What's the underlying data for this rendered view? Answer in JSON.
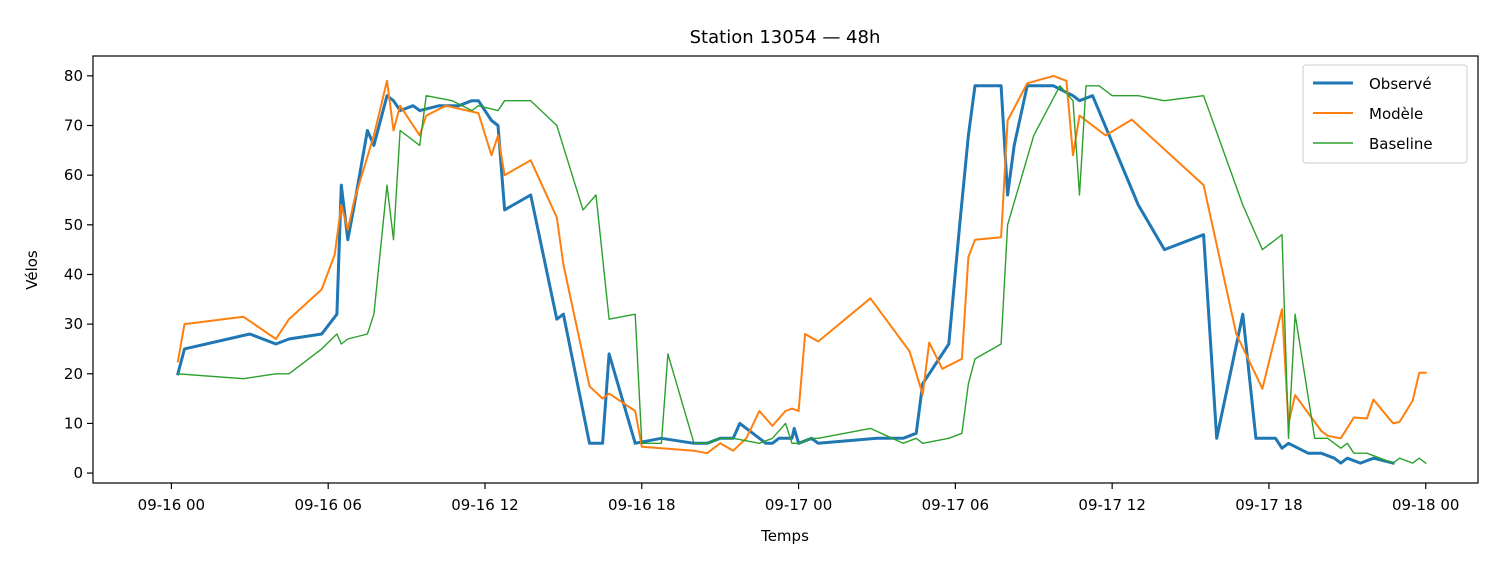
{
  "chart_data": {
    "type": "line",
    "title": "Station 13054 — 48h",
    "xlabel": "Temps",
    "ylabel": "Vélos",
    "x_unit": "date-hour",
    "xlim": [
      "09-15 21:00",
      "09-18 02:00"
    ],
    "ylim": [
      -2,
      84
    ],
    "x_ticks": [
      "09-16 00",
      "09-16 06",
      "09-16 12",
      "09-16 18",
      "09-17 00",
      "09-17 06",
      "09-17 12",
      "09-17 18",
      "09-18 00"
    ],
    "y_ticks": [
      0,
      10,
      20,
      30,
      40,
      50,
      60,
      70,
      80
    ],
    "grid": false,
    "legend_position": "top-right",
    "colors": {
      "observe": "#1f77b4",
      "modele": "#ff7f0e",
      "baseline": "#2ca02c"
    },
    "series": [
      {
        "name": "Observé",
        "points": [
          [
            "09-16 00:15",
            20
          ],
          [
            "09-16 00:30",
            25
          ],
          [
            "09-16 03:00",
            28
          ],
          [
            "09-16 04:00",
            26
          ],
          [
            "09-16 04:30",
            27
          ],
          [
            "09-16 05:45",
            28
          ],
          [
            "09-16 06:20",
            32
          ],
          [
            "09-16 06:30",
            58
          ],
          [
            "09-16 06:45",
            47
          ],
          [
            "09-16 07:00",
            54
          ],
          [
            "09-16 07:30",
            69
          ],
          [
            "09-16 07:45",
            66
          ],
          [
            "09-16 08:15",
            76
          ],
          [
            "09-16 08:30",
            75
          ],
          [
            "09-16 08:45",
            73
          ],
          [
            "09-16 09:15",
            74
          ],
          [
            "09-16 09:30",
            73
          ],
          [
            "09-16 10:15",
            74
          ],
          [
            "09-16 11:00",
            74
          ],
          [
            "09-16 11:30",
            75
          ],
          [
            "09-16 11:45",
            75
          ],
          [
            "09-16 12:15",
            71
          ],
          [
            "09-16 12:30",
            70
          ],
          [
            "09-16 12:45",
            53
          ],
          [
            "09-16 13:45",
            56
          ],
          [
            "09-16 14:45",
            31
          ],
          [
            "09-16 15:00",
            32
          ],
          [
            "09-16 16:00",
            6
          ],
          [
            "09-16 16:30",
            6
          ],
          [
            "09-16 16:45",
            24
          ],
          [
            "09-16 17:45",
            6
          ],
          [
            "09-16 18:15",
            6.5
          ],
          [
            "09-16 18:45",
            7
          ],
          [
            "09-16 20:00",
            6
          ],
          [
            "09-16 20:30",
            6
          ],
          [
            "09-16 21:00",
            7
          ],
          [
            "09-16 21:30",
            7
          ],
          [
            "09-16 21:45",
            10
          ],
          [
            "09-16 22:30",
            7
          ],
          [
            "09-16 22:45",
            6
          ],
          [
            "09-16 23:00",
            6
          ],
          [
            "09-16 23:15",
            7
          ],
          [
            "09-16 23:30",
            7
          ],
          [
            "09-16 23:45",
            7
          ],
          [
            "09-16 23:50",
            9
          ],
          [
            "09-17 00:00",
            6
          ],
          [
            "09-17 00:30",
            7
          ],
          [
            "09-17 00:45",
            6
          ],
          [
            "09-17 03:00",
            7
          ],
          [
            "09-17 04:00",
            7
          ],
          [
            "09-17 04:30",
            8
          ],
          [
            "09-17 04:45",
            18
          ],
          [
            "09-17 05:45",
            26
          ],
          [
            "09-17 06:10",
            50
          ],
          [
            "09-17 06:30",
            68
          ],
          [
            "09-17 06:45",
            78
          ],
          [
            "09-17 07:45",
            78
          ],
          [
            "09-17 08:00",
            56
          ],
          [
            "09-17 08:15",
            66
          ],
          [
            "09-17 08:45",
            78
          ],
          [
            "09-17 09:45",
            78
          ],
          [
            "09-17 10:30",
            76
          ],
          [
            "09-17 10:45",
            75
          ],
          [
            "09-17 11:15",
            76
          ],
          [
            "09-17 13:00",
            54
          ],
          [
            "09-17 14:00",
            45
          ],
          [
            "09-17 15:30",
            48
          ],
          [
            "09-17 16:00",
            7
          ],
          [
            "09-17 17:00",
            32
          ],
          [
            "09-17 17:30",
            7
          ],
          [
            "09-17 18:15",
            7
          ],
          [
            "09-17 18:30",
            5
          ],
          [
            "09-17 18:45",
            6
          ],
          [
            "09-17 19:30",
            4
          ],
          [
            "09-17 20:00",
            4
          ],
          [
            "09-17 20:30",
            3
          ],
          [
            "09-17 20:45",
            2
          ],
          [
            "09-17 21:00",
            3
          ],
          [
            "09-17 21:30",
            2
          ],
          [
            "09-17 22:00",
            3
          ],
          [
            "09-17 22:45",
            2
          ]
        ]
      },
      {
        "name": "Modèle",
        "points": [
          [
            "09-16 00:15",
            22.5
          ],
          [
            "09-16 00:30",
            30
          ],
          [
            "09-16 02:45",
            31.5
          ],
          [
            "09-16 04:00",
            27
          ],
          [
            "09-16 04:30",
            31
          ],
          [
            "09-16 05:45",
            37
          ],
          [
            "09-16 06:15",
            44
          ],
          [
            "09-16 06:30",
            54
          ],
          [
            "09-16 06:45",
            49
          ],
          [
            "09-16 07:00",
            55
          ],
          [
            "09-16 07:45",
            68
          ],
          [
            "09-16 08:15",
            79
          ],
          [
            "09-16 08:30",
            69
          ],
          [
            "09-16 08:45",
            74
          ],
          [
            "09-16 09:00",
            72
          ],
          [
            "09-16 09:30",
            68
          ],
          [
            "09-16 09:45",
            72
          ],
          [
            "09-16 10:30",
            74
          ],
          [
            "09-16 11:45",
            72.5
          ],
          [
            "09-16 12:15",
            64
          ],
          [
            "09-16 12:30",
            68
          ],
          [
            "09-16 12:45",
            60
          ],
          [
            "09-16 13:45",
            63
          ],
          [
            "09-16 14:45",
            51.5
          ],
          [
            "09-16 15:00",
            42
          ],
          [
            "09-16 16:00",
            17.5
          ],
          [
            "09-16 16:30",
            15
          ],
          [
            "09-16 16:45",
            16
          ],
          [
            "09-16 17:45",
            12.5
          ],
          [
            "09-16 18:00",
            5.3
          ],
          [
            "09-16 18:45",
            5.0
          ],
          [
            "09-16 20:00",
            4.5
          ],
          [
            "09-16 20:30",
            4
          ],
          [
            "09-16 21:00",
            6
          ],
          [
            "09-16 21:30",
            4.5
          ],
          [
            "09-16 22:00",
            7
          ],
          [
            "09-16 22:30",
            12.5
          ],
          [
            "09-16 23:00",
            9.5
          ],
          [
            "09-16 23:30",
            12.5
          ],
          [
            "09-16 23:45",
            13
          ],
          [
            "09-17 00:00",
            12.5
          ],
          [
            "09-17 00:15",
            28
          ],
          [
            "09-17 00:45",
            26.5
          ],
          [
            "09-17 02:45",
            35.2
          ],
          [
            "09-17 04:15",
            24.5
          ],
          [
            "09-17 04:45",
            15.8
          ],
          [
            "09-17 05:00",
            26.3
          ],
          [
            "09-17 05:30",
            21
          ],
          [
            "09-17 06:15",
            23
          ],
          [
            "09-17 06:30",
            43.5
          ],
          [
            "09-17 06:45",
            47
          ],
          [
            "09-17 07:45",
            47.5
          ],
          [
            "09-17 08:00",
            71
          ],
          [
            "09-17 08:45",
            78.5
          ],
          [
            "09-17 09:45",
            80
          ],
          [
            "09-17 10:15",
            79
          ],
          [
            "09-17 10:30",
            64
          ],
          [
            "09-17 10:45",
            72
          ],
          [
            "09-17 11:30",
            69
          ],
          [
            "09-17 11:45",
            68
          ],
          [
            "09-17 12:45",
            71.2
          ],
          [
            "09-17 15:30",
            58
          ],
          [
            "09-17 16:45",
            28
          ],
          [
            "09-17 17:45",
            17
          ],
          [
            "09-17 18:30",
            33
          ],
          [
            "09-17 18:45",
            10
          ],
          [
            "09-17 19:00",
            15.7
          ],
          [
            "09-17 20:00",
            8.5
          ],
          [
            "09-17 20:15",
            7.5
          ],
          [
            "09-17 20:45",
            7
          ],
          [
            "09-17 21:15",
            11.2
          ],
          [
            "09-17 21:45",
            11
          ],
          [
            "09-17 22:00",
            14.8
          ],
          [
            "09-17 22:45",
            10
          ],
          [
            "09-17 23:00",
            10.3
          ],
          [
            "09-17 23:30",
            14.6
          ],
          [
            "09-17 23:45",
            20.2
          ],
          [
            "09-18 00:00",
            20.2
          ]
        ]
      },
      {
        "name": "Baseline",
        "points": [
          [
            "09-16 00:15",
            20
          ],
          [
            "09-16 02:45",
            19
          ],
          [
            "09-16 04:00",
            20
          ],
          [
            "09-16 04:30",
            20
          ],
          [
            "09-16 05:45",
            25
          ],
          [
            "09-16 06:20",
            28
          ],
          [
            "09-16 06:30",
            26
          ],
          [
            "09-16 06:45",
            27
          ],
          [
            "09-16 07:30",
            28
          ],
          [
            "09-16 07:45",
            32
          ],
          [
            "09-16 08:15",
            58
          ],
          [
            "09-16 08:30",
            47
          ],
          [
            "09-16 08:45",
            69
          ],
          [
            "09-16 09:30",
            66
          ],
          [
            "09-16 09:45",
            76
          ],
          [
            "09-16 10:45",
            75
          ],
          [
            "09-16 11:30",
            73
          ],
          [
            "09-16 11:45",
            74
          ],
          [
            "09-16 12:30",
            73
          ],
          [
            "09-16 12:45",
            75
          ],
          [
            "09-16 13:45",
            75
          ],
          [
            "09-16 14:45",
            70
          ],
          [
            "09-16 15:45",
            53
          ],
          [
            "09-16 16:15",
            56
          ],
          [
            "09-16 16:45",
            31
          ],
          [
            "09-16 17:45",
            32
          ],
          [
            "09-16 18:00",
            6
          ],
          [
            "09-16 18:45",
            6
          ],
          [
            "09-16 19:00",
            24
          ],
          [
            "09-16 20:00",
            6
          ],
          [
            "09-16 20:30",
            6
          ],
          [
            "09-16 21:00",
            7
          ],
          [
            "09-16 21:30",
            7
          ],
          [
            "09-16 22:30",
            6
          ],
          [
            "09-16 23:00",
            7
          ],
          [
            "09-16 23:30",
            10
          ],
          [
            "09-16 23:45",
            6
          ],
          [
            "09-17 00:00",
            6
          ],
          [
            "09-17 00:30",
            7
          ],
          [
            "09-17 00:45",
            7
          ],
          [
            "09-17 02:45",
            9
          ],
          [
            "09-17 04:00",
            6
          ],
          [
            "09-17 04:30",
            7
          ],
          [
            "09-17 04:45",
            6
          ],
          [
            "09-17 05:45",
            7
          ],
          [
            "09-17 06:15",
            8
          ],
          [
            "09-17 06:30",
            18
          ],
          [
            "09-17 06:45",
            23
          ],
          [
            "09-17 07:45",
            26
          ],
          [
            "09-17 08:00",
            50
          ],
          [
            "09-17 09:00",
            68
          ],
          [
            "09-17 10:00",
            78
          ],
          [
            "09-17 10:30",
            75
          ],
          [
            "09-17 10:45",
            56
          ],
          [
            "09-17 11:00",
            78
          ],
          [
            "09-17 11:30",
            78
          ],
          [
            "09-17 12:00",
            76
          ],
          [
            "09-17 13:00",
            76
          ],
          [
            "09-17 14:00",
            75
          ],
          [
            "09-17 15:30",
            76
          ],
          [
            "09-17 17:00",
            54
          ],
          [
            "09-17 17:45",
            45
          ],
          [
            "09-17 18:30",
            48
          ],
          [
            "09-17 18:45",
            7
          ],
          [
            "09-17 19:00",
            32
          ],
          [
            "09-17 19:45",
            7
          ],
          [
            "09-17 20:15",
            7
          ],
          [
            "09-17 20:45",
            5
          ],
          [
            "09-17 21:00",
            6
          ],
          [
            "09-17 21:15",
            4
          ],
          [
            "09-17 21:45",
            4
          ],
          [
            "09-17 22:15",
            3
          ],
          [
            "09-17 22:45",
            2
          ],
          [
            "09-17 23:00",
            3
          ],
          [
            "09-17 23:30",
            2
          ],
          [
            "09-17 23:45",
            3
          ],
          [
            "09-18 00:00",
            2
          ]
        ]
      }
    ]
  }
}
